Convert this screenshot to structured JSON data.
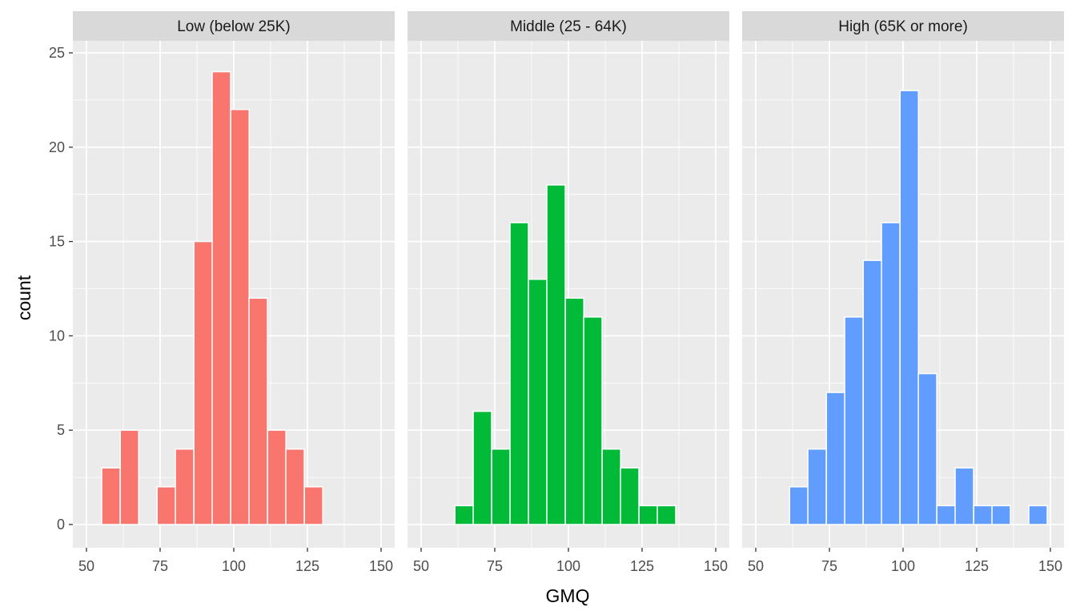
{
  "chart_data": {
    "type": "bar",
    "subtype": "faceted histogram",
    "xlabel": "GMQ",
    "ylabel": "count",
    "xlim": [
      50,
      150
    ],
    "ylim": [
      0,
      25
    ],
    "x_ticks": [
      50,
      75,
      100,
      125,
      150
    ],
    "y_ticks": [
      0,
      5,
      10,
      15,
      20,
      25
    ],
    "grid": true,
    "bin_width": 6.25,
    "facets": [
      {
        "label": "Low (below 25K)",
        "color": "#F8766D",
        "bins": [
          {
            "x": 58.3,
            "count": 3
          },
          {
            "x": 64.6,
            "count": 5
          },
          {
            "x": 77.1,
            "count": 2
          },
          {
            "x": 83.3,
            "count": 4
          },
          {
            "x": 89.6,
            "count": 15
          },
          {
            "x": 95.8,
            "count": 24
          },
          {
            "x": 102.1,
            "count": 22
          },
          {
            "x": 108.3,
            "count": 12
          },
          {
            "x": 114.6,
            "count": 5
          },
          {
            "x": 120.8,
            "count": 4
          },
          {
            "x": 127.1,
            "count": 2
          }
        ]
      },
      {
        "label": "Middle (25 - 64K)",
        "color": "#00BA38",
        "bins": [
          {
            "x": 64.6,
            "count": 1
          },
          {
            "x": 70.8,
            "count": 6
          },
          {
            "x": 77.1,
            "count": 4
          },
          {
            "x": 83.3,
            "count": 16
          },
          {
            "x": 89.6,
            "count": 13
          },
          {
            "x": 95.8,
            "count": 18
          },
          {
            "x": 102.1,
            "count": 12
          },
          {
            "x": 108.3,
            "count": 11
          },
          {
            "x": 114.6,
            "count": 4
          },
          {
            "x": 120.8,
            "count": 3
          },
          {
            "x": 127.1,
            "count": 1
          },
          {
            "x": 133.3,
            "count": 1
          }
        ]
      },
      {
        "label": "High (65K or more)",
        "color": "#619CFF",
        "bins": [
          {
            "x": 64.6,
            "count": 2
          },
          {
            "x": 70.8,
            "count": 4
          },
          {
            "x": 77.1,
            "count": 7
          },
          {
            "x": 83.3,
            "count": 11
          },
          {
            "x": 89.6,
            "count": 14
          },
          {
            "x": 95.8,
            "count": 16
          },
          {
            "x": 102.1,
            "count": 23
          },
          {
            "x": 108.3,
            "count": 8
          },
          {
            "x": 114.6,
            "count": 1
          },
          {
            "x": 120.8,
            "count": 3
          },
          {
            "x": 127.1,
            "count": 1
          },
          {
            "x": 133.3,
            "count": 1
          },
          {
            "x": 145.8,
            "count": 1
          }
        ]
      }
    ]
  }
}
